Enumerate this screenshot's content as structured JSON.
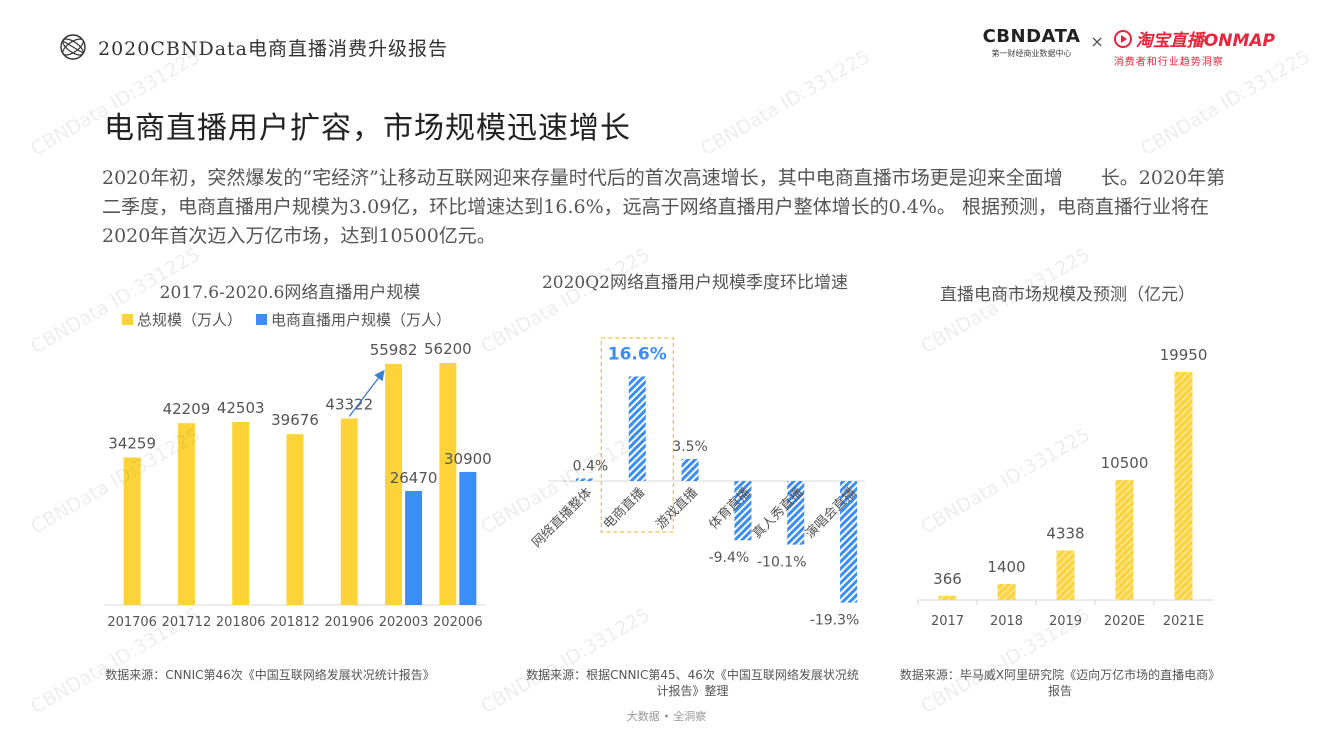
{
  "header": {
    "report_title": "2020CBNData电商直播消费升级报告",
    "brand_cbn": "CBNDATA",
    "brand_cbn_sub": "第一财经商业数据中心",
    "brand_sep": "×",
    "brand_tb": "淘宝直播ONMAP",
    "brand_tb_sub": "消费者和行业趋势洞察"
  },
  "slide": {
    "title": "电商直播用户扩容，市场规模迅速增长",
    "intro": "2020年初，突然爆发的“宅经济”让移动互联网迎来存量时代后的首次高速增长，其中电商直播市场更是迎来全面增　　长。2020年第二季度，电商直播用户规模为3.09亿，环比增速达到16.6%，远高于网络直播用户整体增长的0.4%。 根据预测，电商直播行业将在2020年首次迈入万亿市场，达到10500亿元。"
  },
  "colors": {
    "yellow": "#fcd43a",
    "blue": "#3a8ef5",
    "axis": "#d8d8d8",
    "accent": "#e8253b"
  },
  "chart_data": [
    {
      "type": "bar",
      "title": "2017.6-2020.6网络直播用户规模",
      "categories": [
        "201706",
        "201712",
        "201806",
        "201812",
        "201906",
        "202003",
        "202006"
      ],
      "series": [
        {
          "name": "总规模（万人）",
          "values": [
            34259,
            42209,
            42503,
            39676,
            43322,
            55982,
            56200
          ],
          "labels": [
            "34259",
            "42209",
            "42503",
            "39676",
            "43322",
            "55982",
            "56200"
          ]
        },
        {
          "name": "电商直播用户规模（万人）",
          "values": [
            null,
            null,
            null,
            null,
            null,
            26470,
            30900
          ],
          "labels": [
            "",
            "",
            "",
            "",
            "",
            "26470",
            "30900"
          ]
        }
      ],
      "ylim": [
        0,
        62000
      ],
      "legend": "top",
      "source": "数据来源：CNNIC第46次《中国互联网络发展状况统计报告》"
    },
    {
      "type": "bar",
      "title": "2020Q2网络直播用户规模季度环比增速",
      "categories": [
        "网络直播整体",
        "电商直播",
        "游戏直播",
        "体育直播",
        "真人秀直播",
        "演唱会直播"
      ],
      "values": [
        0.4,
        16.6,
        3.5,
        -9.4,
        -10.1,
        -19.3
      ],
      "labels": [
        "0.4%",
        "16.6%",
        "3.5%",
        "-9.4%",
        "-10.1%",
        "-19.3%"
      ],
      "unit": "%",
      "ylim": [
        -20,
        18
      ],
      "highlight": "电商直播",
      "source": "数据来源：根据CNNIC第45、46次《中国互联网络发展状况统计报告》整理"
    },
    {
      "type": "bar",
      "title": "直播电商市场规模及预测（亿元）",
      "categories": [
        "2017",
        "2018",
        "2019",
        "2020E",
        "2021E"
      ],
      "values": [
        366,
        1400,
        4338,
        10500,
        19950
      ],
      "labels": [
        "366",
        "1400",
        "4338",
        "10500",
        "19950"
      ],
      "ylim": [
        0,
        21000
      ],
      "source": "数据来源：毕马威X阿里研究院《迈向万亿市场的直播电商》 报告"
    }
  ],
  "footer": "大数据 • 全洞察",
  "watermark": "CBNData ID:331225"
}
